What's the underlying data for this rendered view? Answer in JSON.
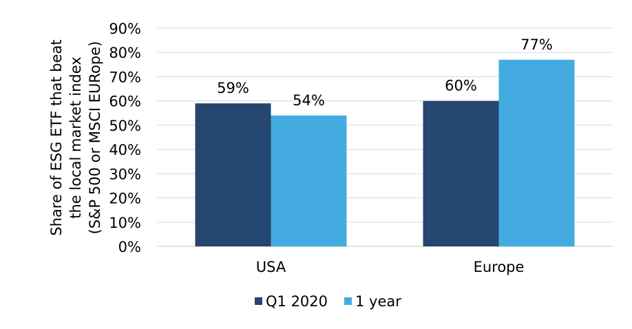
{
  "chart_data": {
    "type": "bar",
    "categories": [
      "USA",
      "Europe"
    ],
    "series": [
      {
        "name": "Q1 2020",
        "values": [
          59,
          60
        ],
        "labels": [
          "59%",
          "60%"
        ],
        "color": "#244670"
      },
      {
        "name": "1 year",
        "values": [
          54,
          77
        ],
        "labels": [
          "54%",
          "77%"
        ],
        "color": "#43ABE0"
      }
    ],
    "ylabel_lines": [
      "Share of ESG ETF that beat",
      "the local market index",
      "(S&P 500 or MSCI EURope)"
    ],
    "ylim": [
      0,
      90
    ],
    "yticks": [
      0,
      10,
      20,
      30,
      40,
      50,
      60,
      70,
      80,
      90
    ],
    "ytick_labels": [
      "0%",
      "10%",
      "20%",
      "30%",
      "40%",
      "50%",
      "60%",
      "70%",
      "80%",
      "90%"
    ],
    "grid": true,
    "grid_color": "#D9D9D9",
    "legend_position": "bottom"
  }
}
